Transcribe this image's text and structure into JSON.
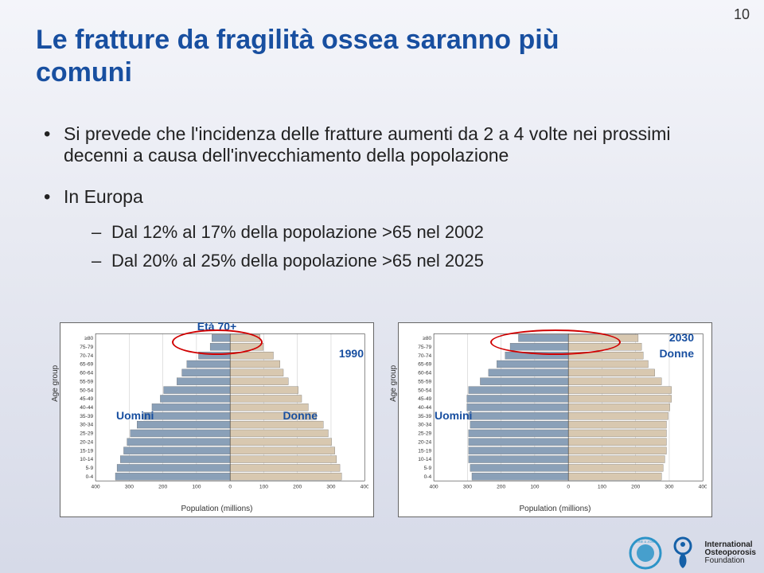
{
  "page_number": "10",
  "title": "Le fratture da fragilità ossea saranno più comuni",
  "bullets": {
    "b1": "Si prevede che l'incidenza delle fratture aumenti da 2 a 4 volte nei prossimi decenni a causa dell'invecchiamento della popolazione",
    "b2": "In Europa",
    "b2_1": "Dal 12% al 17% della popolazione >65 nel 2002",
    "b2_2": "Dal 20% al 25% della popolazione >65 nel 2025"
  },
  "pyramid_common": {
    "age_groups": [
      "≥80",
      "75-79",
      "70-74",
      "65-69",
      "60-64",
      "55-59",
      "50-54",
      "45-49",
      "40-44",
      "35-39",
      "30-34",
      "25-29",
      "20-24",
      "15-19",
      "10-14",
      "5-9",
      "0-4"
    ],
    "ylabel": "Age group",
    "xlabel": "Population (millions)",
    "xticks": [
      "400",
      "300",
      "200",
      "100",
      "0",
      "100",
      "200",
      "300",
      "400"
    ],
    "male_color": "#8aa0b8",
    "female_color": "#d8c8b0",
    "grid_color": "#c0c0c0",
    "bg": "#ffffff",
    "label_fontsize": 7
  },
  "pyr1990": {
    "top_label": "Età 70+",
    "year_label": "1990",
    "uomini": "Uomini",
    "donne": "Donne",
    "male": [
      55,
      60,
      95,
      130,
      145,
      160,
      200,
      210,
      235,
      260,
      280,
      300,
      310,
      320,
      330,
      340,
      345
    ],
    "female": [
      90,
      100,
      130,
      150,
      160,
      175,
      205,
      215,
      235,
      260,
      280,
      295,
      305,
      315,
      320,
      330,
      335
    ]
  },
  "pyr2030": {
    "year_label": "2030",
    "uomini": "Uomini",
    "donne": "Donne",
    "male": [
      150,
      175,
      190,
      215,
      240,
      265,
      300,
      305,
      305,
      300,
      295,
      300,
      300,
      300,
      300,
      295,
      290
    ],
    "female": [
      210,
      220,
      225,
      240,
      260,
      280,
      310,
      310,
      305,
      300,
      295,
      295,
      295,
      295,
      290,
      285,
      280
    ]
  },
  "footer": {
    "line1": "International",
    "line2": "Osteoporosis",
    "line3": "Foundation"
  },
  "colors": {
    "title": "#184fa0",
    "ring": "#d00000",
    "badge1": "#2d94c8",
    "badge2": "#1560a8"
  }
}
